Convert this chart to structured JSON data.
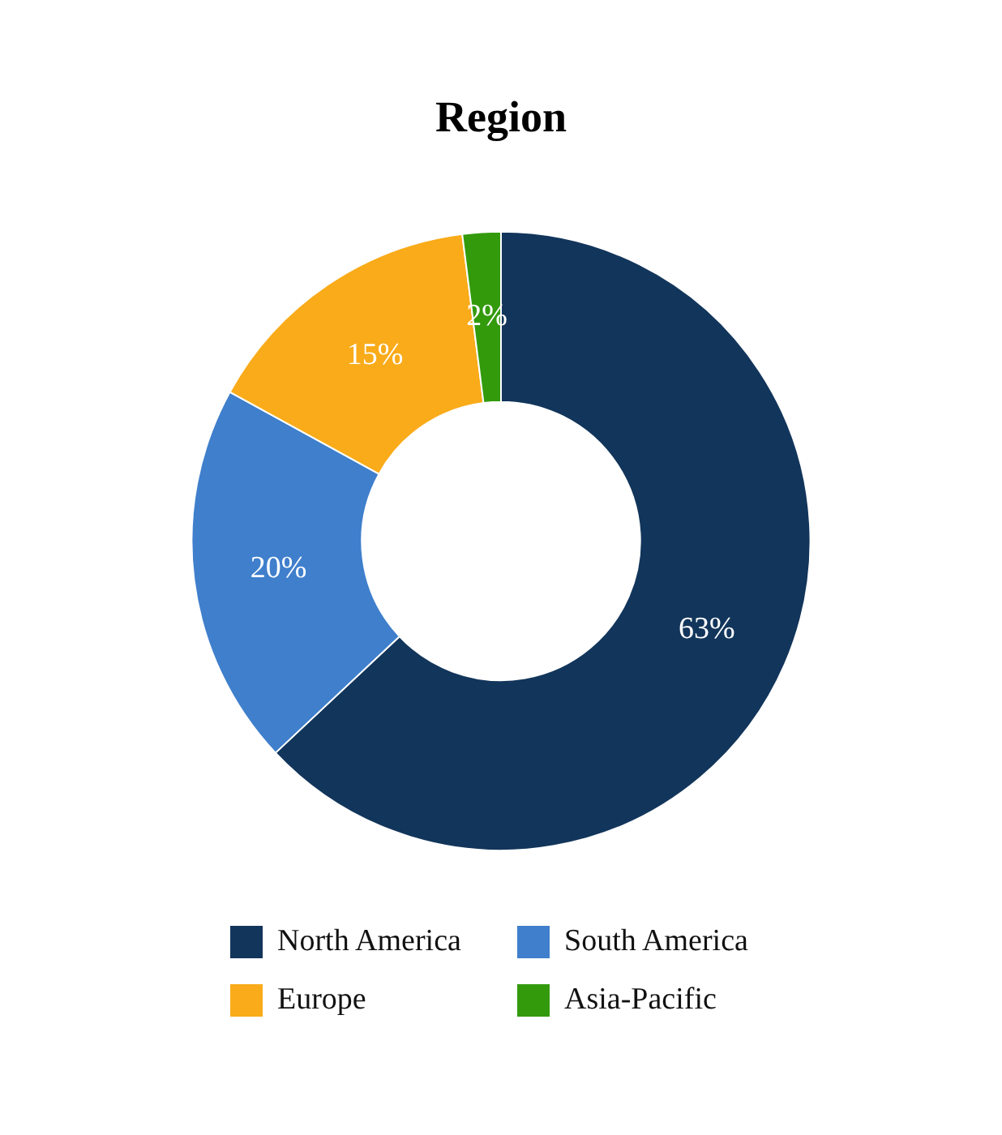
{
  "chart_data": {
    "type": "donut",
    "title": "Region",
    "categories": [
      "North America",
      "South America",
      "Europe",
      "Asia-Pacific"
    ],
    "values": [
      63,
      20,
      15,
      2
    ],
    "colors": [
      "#12355b",
      "#3f7fcc",
      "#f9ab19",
      "#339a0c"
    ],
    "value_labels": [
      "63%",
      "20%",
      "15%",
      "2%"
    ],
    "legend": "bottom"
  }
}
